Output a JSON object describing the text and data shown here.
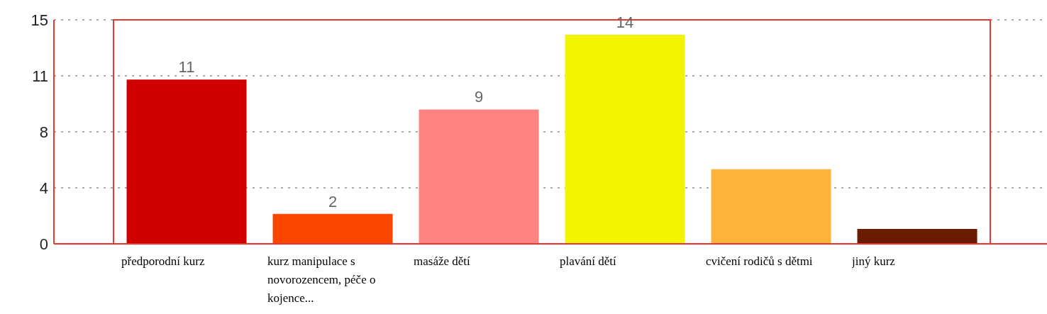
{
  "chart_data": {
    "type": "bar",
    "categories": [
      "předporodní kurz",
      "kurz manipulace s novorozencem, péče o kojence...",
      "masáže dětí",
      "plavání dětí",
      "cvičení rodičů s dětmi",
      "jiný kurz"
    ],
    "values": [
      11,
      2,
      9,
      14,
      5,
      1
    ],
    "colors": [
      "#d10000",
      "#fb4600",
      "#ff8381",
      "#f3f400",
      "#fdb23a",
      "#6b1c00"
    ],
    "value_labels": [
      "11",
      "2",
      "9",
      "14",
      null,
      null
    ],
    "ylim": [
      0,
      15
    ],
    "yticks": [
      0,
      {
        "value": 3.75,
        "label": "4"
      },
      {
        "value": 7.5,
        "label": "8"
      },
      {
        "value": 11.25,
        "label": "11"
      },
      15
    ],
    "grid": "y",
    "legend": false
  }
}
